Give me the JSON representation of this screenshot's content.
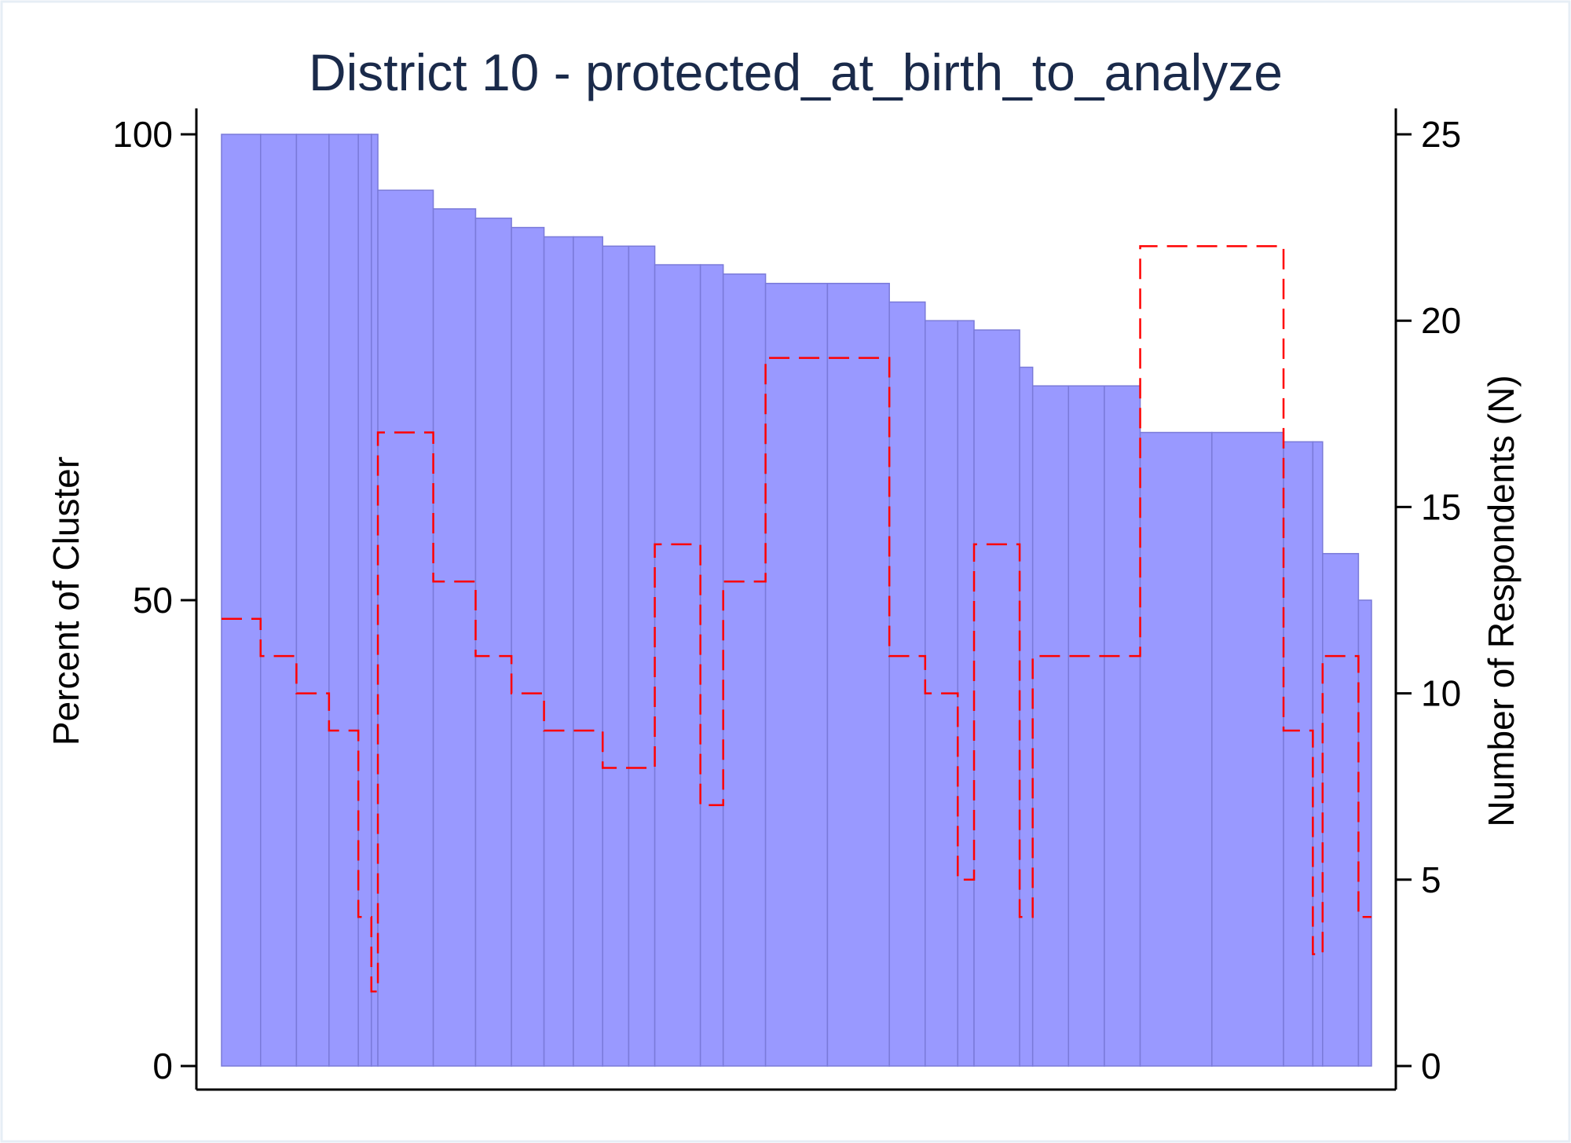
{
  "chart_data": {
    "type": "bar",
    "title": "District 10 - protected_at_birth_to_analyze",
    "ylabel": "Percent of Cluster",
    "y2label": "Number of Respondents (N)",
    "xlabel": "",
    "ylim": [
      0,
      100
    ],
    "y2lim": [
      0,
      25
    ],
    "yticks": [
      "0",
      "50",
      "100"
    ],
    "y2ticks": [
      "0",
      "5",
      "10",
      "15",
      "20",
      "25"
    ],
    "bar_color": "#9999ff",
    "line_color": "#ff0000",
    "grid": false,
    "series": [
      {
        "values": [
          100,
          100,
          100,
          100,
          100,
          100,
          94,
          92,
          91,
          90,
          89,
          89,
          88,
          88,
          86,
          86,
          85,
          84,
          84,
          82,
          80,
          80,
          79,
          75,
          73,
          73,
          73,
          68,
          68,
          67,
          67,
          55,
          50
        ]
      },
      {
        "type": "step",
        "values": [
          12,
          11,
          10,
          9,
          4,
          2,
          17,
          13,
          11,
          10,
          9,
          9,
          8,
          8,
          14,
          7,
          13,
          19,
          19,
          11,
          10,
          5,
          14,
          4,
          11,
          11,
          11,
          22,
          22,
          9,
          3,
          11,
          4
        ]
      }
    ],
    "widths": [
      12,
      11,
      10,
      9,
      4,
      2,
      17,
      13,
      11,
      10,
      9,
      9,
      8,
      8,
      14,
      7,
      13,
      19,
      19,
      11,
      10,
      5,
      14,
      4,
      11,
      11,
      11,
      22,
      22,
      9,
      3,
      11,
      4
    ]
  }
}
